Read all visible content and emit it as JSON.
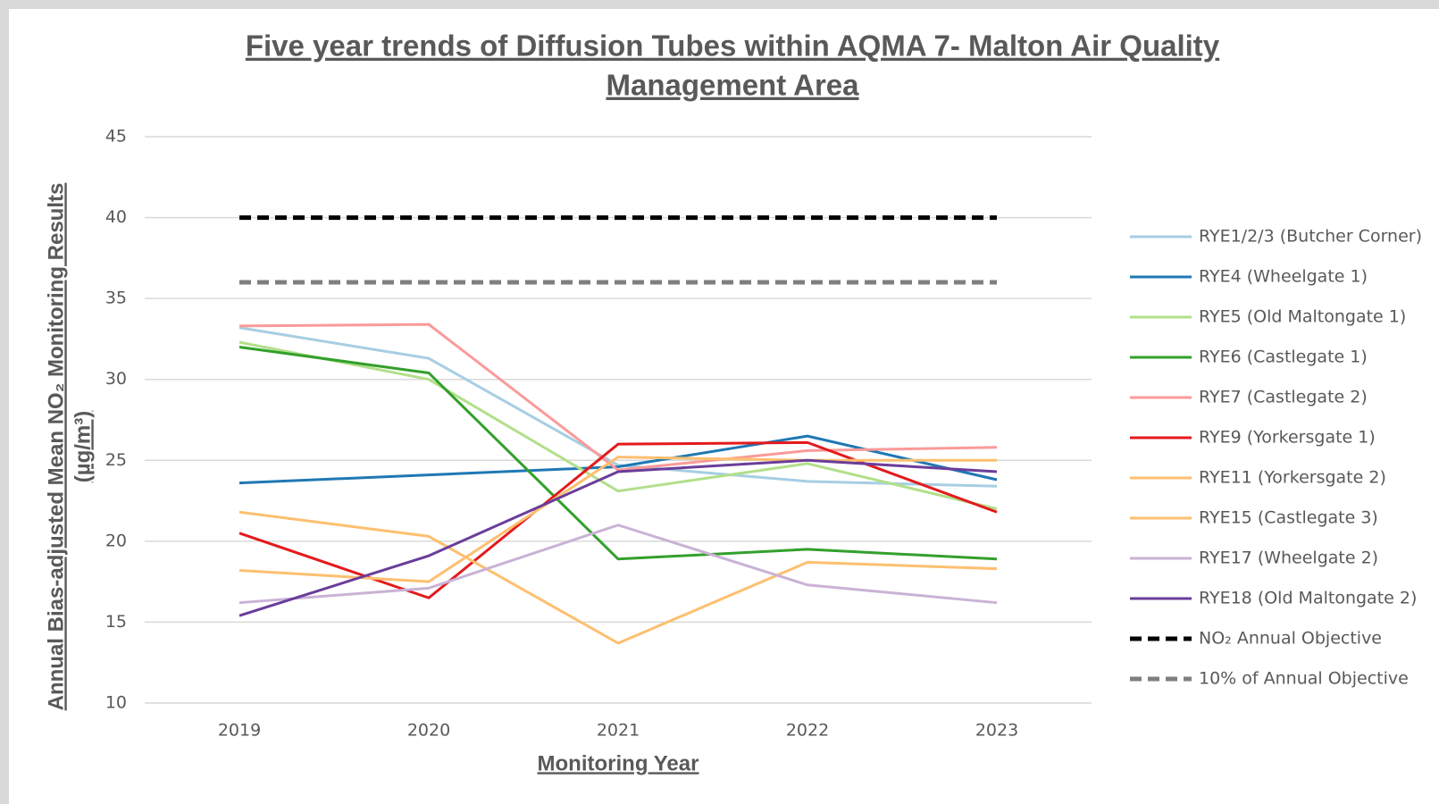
{
  "chart_data": {
    "type": "line",
    "title": [
      "Five year trends of Diffusion Tubes within AQMA 7- Malton Air Quality",
      "Management Area "
    ],
    "xlabel": "Monitoring Year",
    "ylabel": [
      "Annual Bias-adjusted Mean NO₂ Monitoring Results",
      "(µg/m³)"
    ],
    "categories": [
      "2019",
      "2020",
      "2021",
      "2022",
      "2023"
    ],
    "ylim": [
      10,
      45
    ],
    "yticks": [
      10,
      15,
      20,
      25,
      30,
      35,
      40,
      45
    ],
    "grid": true,
    "legend": "right",
    "series": [
      {
        "name": "RYE1/2/3 (Butcher Corner)",
        "color": "#a6cee3",
        "values": [
          33.2,
          31.3,
          24.7,
          23.7,
          23.4
        ]
      },
      {
        "name": "RYE4 (Wheelgate 1)",
        "color": "#1f78b4",
        "values": [
          23.6,
          24.1,
          24.6,
          26.5,
          23.8
        ]
      },
      {
        "name": "RYE5 (Old Maltongate 1)",
        "color": "#b2df8a",
        "values": [
          32.3,
          30.0,
          23.1,
          24.8,
          22.0
        ]
      },
      {
        "name": "RYE6 (Castlegate 1)",
        "color": "#33a02c",
        "values": [
          32.0,
          30.4,
          18.9,
          19.5,
          18.9
        ]
      },
      {
        "name": "RYE7 (Castlegate 2)",
        "color": "#fb9a99",
        "values": [
          33.3,
          33.4,
          24.4,
          25.6,
          25.8
        ]
      },
      {
        "name": "RYE9 (Yorkersgate 1)",
        "color": "#e31a1c",
        "values": [
          20.5,
          16.5,
          26.0,
          26.1,
          21.8
        ]
      },
      {
        "name": "RYE11 (Yorkersgate 2)",
        "color": "#fdbf6f",
        "values": [
          18.2,
          17.5,
          25.2,
          25.0,
          25.0
        ]
      },
      {
        "name": "RYE15 (Castlegate 3)",
        "color": "#fdbf6f",
        "values": [
          21.8,
          20.3,
          13.7,
          18.7,
          18.3
        ]
      },
      {
        "name": "RYE17 (Wheelgate 2)",
        "color": "#cab2d6",
        "values": [
          16.2,
          17.1,
          21.0,
          17.3,
          16.2
        ]
      },
      {
        "name": "RYE18 (Old Maltongate 2)",
        "color": "#6a3d9a",
        "values": [
          15.4,
          19.1,
          24.3,
          25.0,
          24.3
        ]
      },
      {
        "name": "NO₂ Annual Objective",
        "color": "#000000",
        "dashed": true,
        "values": [
          40,
          40,
          40,
          40,
          40
        ]
      },
      {
        "name": "10% of Annual Objective",
        "color": "#7f7f7f",
        "dashed": true,
        "values": [
          36,
          36,
          36,
          36,
          36
        ]
      }
    ]
  }
}
